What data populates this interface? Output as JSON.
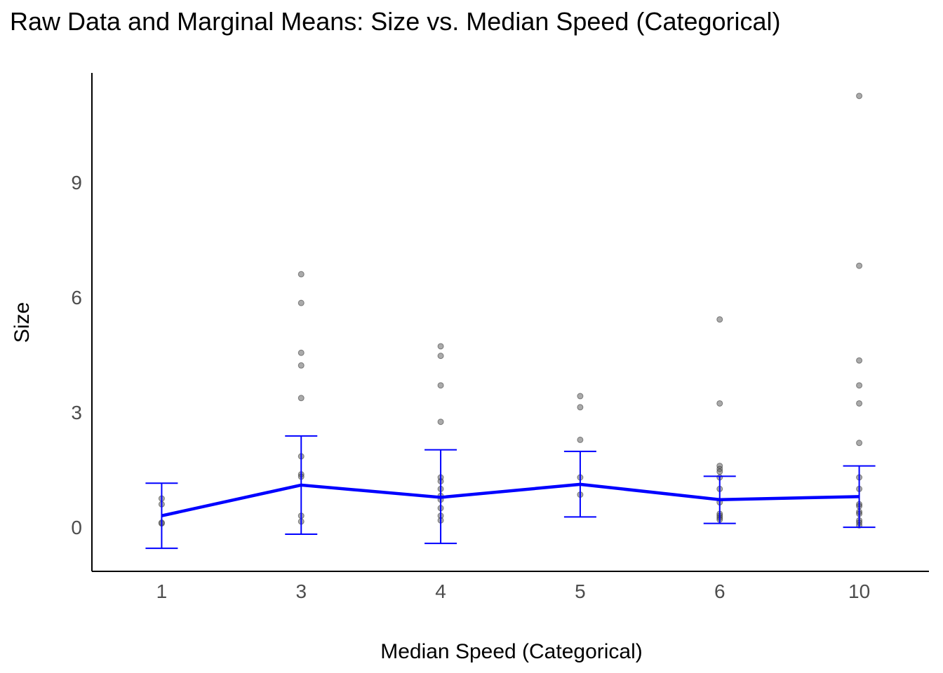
{
  "chart_data": {
    "type": "scatter",
    "title": "Raw Data and Marginal Means: Size vs. Median Speed (Categorical)",
    "xlabel": "Median Speed (Categorical)",
    "ylabel": "Size",
    "categories": [
      "1",
      "3",
      "4",
      "5",
      "6",
      "10"
    ],
    "yticks": [
      0,
      3,
      6,
      9
    ],
    "ylim": [
      -1.15,
      11.85
    ],
    "grid": false,
    "colors": {
      "points": "#555555",
      "mean_line": "#0000ff",
      "axis": "#000000"
    },
    "raw_points": [
      {
        "category": "1",
        "values": [
          0.75,
          0.6,
          0.1,
          0.12
        ]
      },
      {
        "category": "3",
        "values": [
          6.6,
          5.85,
          4.55,
          4.22,
          3.37,
          1.85,
          1.38,
          1.32,
          0.3,
          0.15
        ]
      },
      {
        "category": "4",
        "values": [
          4.72,
          4.47,
          3.7,
          2.75,
          1.3,
          1.2,
          1.0,
          0.82,
          0.72,
          0.5,
          0.3,
          0.18
        ]
      },
      {
        "category": "5",
        "values": [
          3.42,
          3.13,
          2.28,
          1.3,
          0.85
        ]
      },
      {
        "category": "6",
        "values": [
          5.42,
          3.23,
          1.6,
          1.52,
          1.45,
          1.3,
          1.0,
          0.65,
          0.35,
          0.3,
          0.25,
          0.2
        ]
      },
      {
        "category": "10",
        "values": [
          11.25,
          6.82,
          4.35,
          3.7,
          3.23,
          2.2,
          1.3,
          1.0,
          0.6,
          0.55,
          0.4,
          0.35,
          0.18,
          0.12,
          0.05
        ]
      }
    ],
    "series": [
      {
        "values": [
          0.3,
          1.1,
          0.78,
          1.12,
          0.72,
          0.8
        ],
        "lower": [
          -0.55,
          -0.18,
          -0.42,
          0.27,
          0.1,
          0.0
        ],
        "upper": [
          1.15,
          2.38,
          2.02,
          1.98,
          1.33,
          1.6
        ]
      }
    ]
  }
}
